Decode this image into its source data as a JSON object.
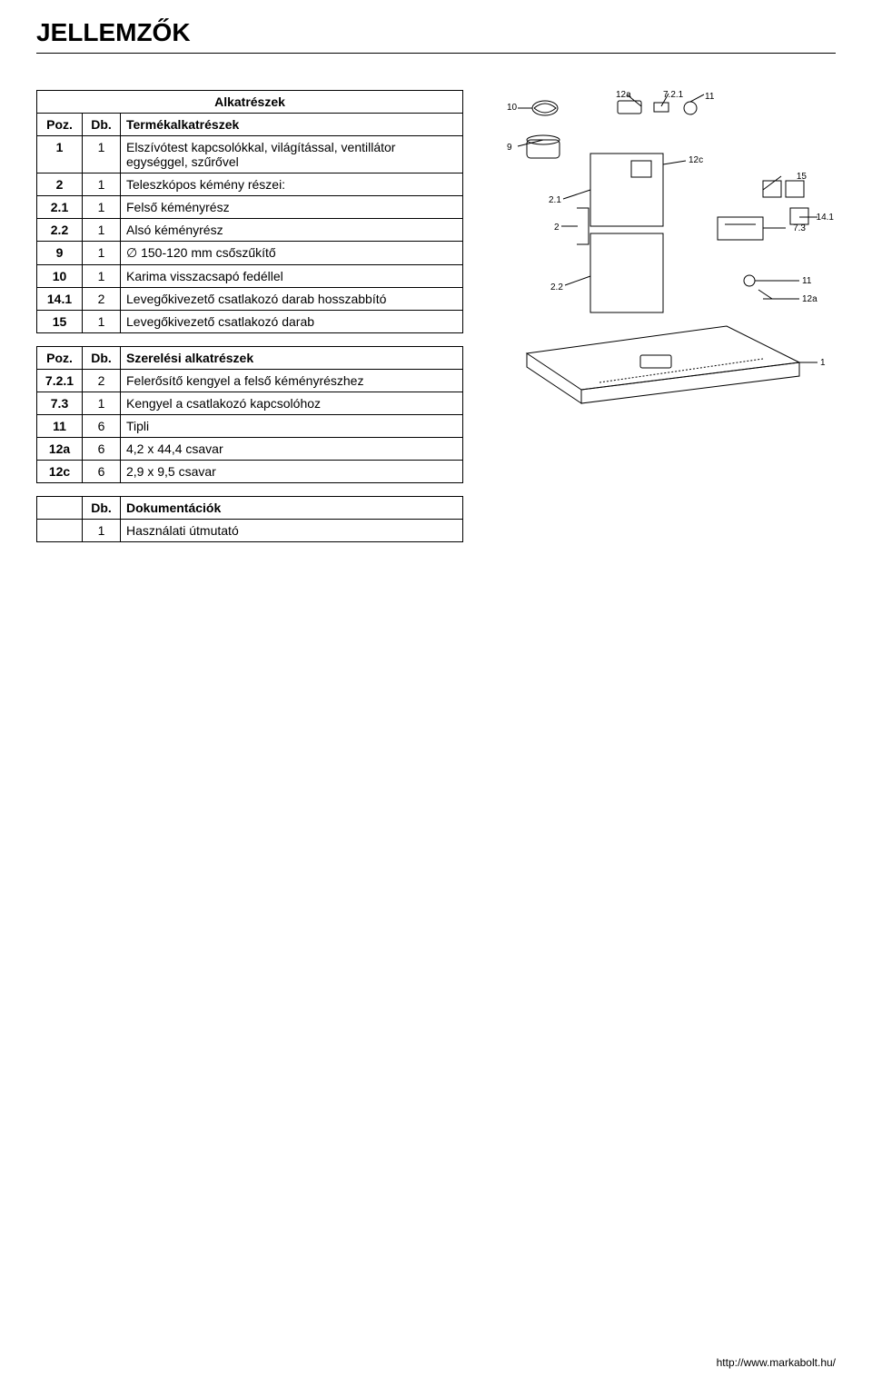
{
  "page": {
    "title": "JELLEMZŐK",
    "footer_url": "http://www.markabolt.hu/"
  },
  "tables": {
    "parts": {
      "header_poz": "Poz.",
      "header_db": "Db.",
      "title": "Alkatrészek",
      "subtitle": "Termékalkatrészek",
      "rows": [
        {
          "poz": "1",
          "db": "1",
          "desc": "Elszívótest kapcsolókkal, világítással, ventillátor egységgel, szűrővel"
        },
        {
          "poz": "2",
          "db": "1",
          "desc": "Teleszkópos kémény részei:"
        },
        {
          "poz": "2.1",
          "db": "1",
          "desc": "Felső kéményrész"
        },
        {
          "poz": "2.2",
          "db": "1",
          "desc": "Alsó kéményrész"
        },
        {
          "poz": "9",
          "db": "1",
          "desc": "∅ 150-120 mm csőszűkítő"
        },
        {
          "poz": "10",
          "db": "1",
          "desc": "Karima visszacsapó fedéllel"
        },
        {
          "poz": "14.1",
          "db": "2",
          "desc": "Levegőkivezető csatlakozó darab hosszabbító"
        },
        {
          "poz": "15",
          "db": "1",
          "desc": "Levegőkivezető csatlakozó darab"
        }
      ]
    },
    "mounting": {
      "header_poz": "Poz.",
      "header_db": "Db.",
      "title": "Szerelési alkatrészek",
      "rows": [
        {
          "poz": "7.2.1",
          "db": "2",
          "desc": "Felerősítő kengyel a felső kéményrészhez"
        },
        {
          "poz": "7.3",
          "db": "1",
          "desc": "Kengyel a csatlakozó kapcsolóhoz"
        },
        {
          "poz": "11",
          "db": "6",
          "desc": "Tipli"
        },
        {
          "poz": "12a",
          "db": "6",
          "desc": "4,2 x 44,4 csavar"
        },
        {
          "poz": "12c",
          "db": "6",
          "desc": "2,9 x 9,5 csavar"
        }
      ]
    },
    "docs": {
      "header_db": "Db.",
      "title": "Dokumentációk",
      "rows": [
        {
          "poz": "",
          "db": "1",
          "desc": "Használati útmutató"
        }
      ]
    }
  },
  "diagram": {
    "labels": {
      "l10": "10",
      "l9": "9",
      "l12a": "12a",
      "l721": "7.2.1",
      "l11": "11",
      "l21": "2.1",
      "l12c": "12c",
      "l15": "15",
      "l141": "14.1",
      "l73": "7.3",
      "l2": "2",
      "l22": "2.2",
      "l11b": "11",
      "l12ab": "12a",
      "l1": "1"
    },
    "style": {
      "stroke": "#000000",
      "fill_light": "#ffffff",
      "font_size": 10,
      "font_family": "Arial"
    }
  }
}
